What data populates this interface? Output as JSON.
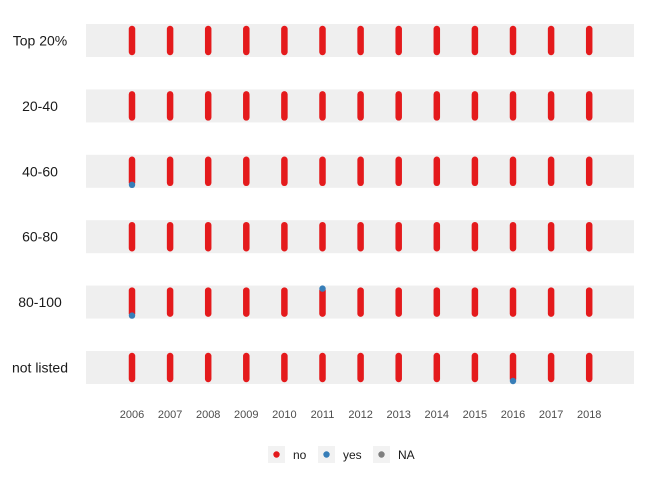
{
  "chart_data": {
    "type": "scatter",
    "title": "",
    "xlabel": "",
    "ylabel": "",
    "x": [
      2006,
      2007,
      2008,
      2009,
      2010,
      2011,
      2012,
      2013,
      2014,
      2015,
      2016,
      2017,
      2018
    ],
    "categories": [
      "Top 20%",
      "20-40",
      "40-60",
      "60-80",
      "80-100",
      "not listed"
    ],
    "grid": false,
    "legend": {
      "placement": "bottom",
      "entries": [
        {
          "label": "no",
          "color": "#e41a1c"
        },
        {
          "label": "yes",
          "color": "#377eb8"
        },
        {
          "label": "NA",
          "color": "#7f7f7f"
        }
      ]
    },
    "series": [
      {
        "name": "no",
        "color": "#e41a1c",
        "category_x": {
          "Top 20%": [
            2006,
            2007,
            2008,
            2009,
            2010,
            2011,
            2012,
            2013,
            2014,
            2015,
            2016,
            2017,
            2018
          ],
          "20-40": [
            2006,
            2007,
            2008,
            2009,
            2010,
            2011,
            2012,
            2013,
            2014,
            2015,
            2016,
            2017,
            2018
          ],
          "40-60": [
            2006,
            2007,
            2008,
            2009,
            2010,
            2011,
            2012,
            2013,
            2014,
            2015,
            2016,
            2017,
            2018
          ],
          "60-80": [
            2006,
            2007,
            2008,
            2009,
            2010,
            2011,
            2012,
            2013,
            2014,
            2015,
            2016,
            2017,
            2018
          ],
          "80-100": [
            2006,
            2007,
            2008,
            2009,
            2010,
            2011,
            2012,
            2013,
            2014,
            2015,
            2016,
            2017,
            2018
          ],
          "not listed": [
            2006,
            2007,
            2008,
            2009,
            2010,
            2011,
            2012,
            2013,
            2014,
            2015,
            2016,
            2017,
            2018
          ]
        }
      },
      {
        "name": "yes",
        "color": "#377eb8",
        "category_x": {
          "40-60": [
            2006
          ],
          "80-100": [
            2006,
            2011
          ],
          "not listed": [
            2016
          ]
        }
      }
    ]
  }
}
